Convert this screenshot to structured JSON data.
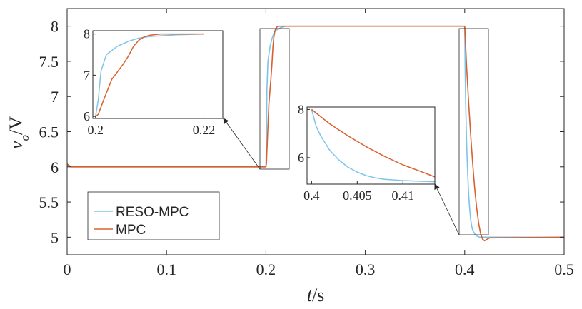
{
  "chart_data": {
    "type": "line",
    "title": "",
    "xlabel_italic": "t",
    "xlabel_unit": "/s",
    "ylabel_main": "v",
    "ylabel_sub": "o",
    "ylabel_unit": "/V",
    "xlim": [
      0,
      0.5
    ],
    "ylim": [
      4.75,
      8.25
    ],
    "xticks": [
      0,
      0.1,
      0.2,
      0.3,
      0.4,
      0.5
    ],
    "xtick_labels": [
      "0",
      "0.1",
      "0.2",
      "0.3",
      "0.4",
      "0.5"
    ],
    "yticks": [
      5,
      5.5,
      6,
      6.5,
      7,
      7.5,
      8
    ],
    "ytick_labels": [
      "5",
      "5.5",
      "6",
      "6.5",
      "7",
      "7.5",
      "8"
    ],
    "legend": {
      "placement": "bottom-left",
      "entries": [
        "RESO-MPC",
        "MPC"
      ]
    },
    "colors": {
      "RESO-MPC": "#7ec4ea",
      "MPC": "#d9602f"
    },
    "series": [
      {
        "name": "RESO-MPC",
        "x": [
          0,
          0.002,
          0.004,
          0.2,
          0.2005,
          0.201,
          0.202,
          0.204,
          0.206,
          0.208,
          0.21,
          0.215,
          0.22,
          0.4,
          0.4005,
          0.401,
          0.402,
          0.403,
          0.404,
          0.405,
          0.406,
          0.407,
          0.408,
          0.41,
          0.412,
          0.415,
          0.42,
          0.5
        ],
        "y": [
          6.02,
          6.01,
          6.0,
          6.0,
          6.4,
          7.1,
          7.5,
          7.7,
          7.82,
          7.9,
          7.94,
          7.98,
          8.0,
          8.0,
          7.3,
          6.9,
          6.3,
          5.9,
          5.6,
          5.4,
          5.25,
          5.16,
          5.1,
          5.05,
          5.02,
          5.0,
          5.0,
          5.0
        ]
      },
      {
        "name": "MPC",
        "x": [
          0,
          0.002,
          0.004,
          0.2,
          0.2005,
          0.2015,
          0.203,
          0.205,
          0.206,
          0.207,
          0.208,
          0.209,
          0.21,
          0.212,
          0.215,
          0.22,
          0.4,
          0.401,
          0.402,
          0.404,
          0.406,
          0.408,
          0.41,
          0.412,
          0.414,
          0.416,
          0.418,
          0.42,
          0.425,
          0.5
        ],
        "y": [
          6.04,
          6.02,
          6.0,
          6.0,
          6.05,
          6.4,
          6.9,
          7.25,
          7.45,
          7.7,
          7.85,
          7.93,
          7.97,
          8.0,
          8.0,
          8.0,
          8.0,
          7.7,
          7.4,
          6.9,
          6.45,
          6.05,
          5.7,
          5.42,
          5.2,
          5.05,
          4.97,
          4.95,
          4.99,
          5.0
        ]
      }
    ],
    "insets": [
      {
        "xlim": [
          0.1995,
          0.2235
        ],
        "ylim": [
          5.95,
          8.08
        ],
        "xticks": [
          0.2,
          0.22
        ],
        "xtick_labels": [
          "0.2",
          "0.22"
        ],
        "yticks": [
          6,
          7,
          8
        ],
        "ytick_labels": [
          "6",
          "7",
          "8"
        ]
      },
      {
        "xlim": [
          0.3995,
          0.4135
        ],
        "ylim": [
          4.9,
          8.1
        ],
        "xticks": [
          0.4,
          0.405,
          0.41
        ],
        "xtick_labels": [
          "0.4",
          "0.405",
          "0.41"
        ],
        "yticks": [
          6,
          8
        ],
        "ytick_labels": [
          "6",
          "8"
        ]
      }
    ]
  }
}
